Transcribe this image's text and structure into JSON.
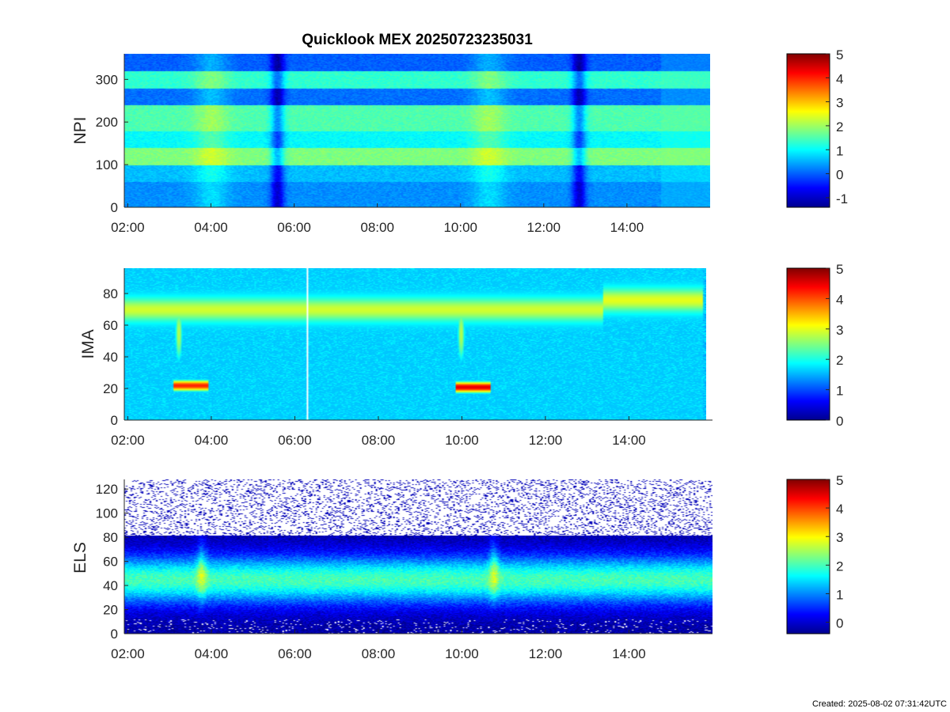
{
  "chart_data": [
    {
      "type": "heatmap",
      "title": "Quicklook MEX 20250723235031",
      "ylabel": "NPI",
      "ylim": [
        0,
        360
      ],
      "yticks": [
        "0",
        "100",
        "200",
        "300"
      ],
      "xlim": [
        "01:55",
        "16:00"
      ],
      "xticks": [
        "02:00",
        "04:00",
        "06:00",
        "08:00",
        "10:00",
        "12:00",
        "14:00"
      ],
      "colorbar": {
        "min": -1.4,
        "max": 5,
        "ticks": [
          "-1",
          "0",
          "1",
          "2",
          "3",
          "4",
          "5"
        ]
      },
      "features": [
        {
          "kind": "dip",
          "time": "05:35",
          "value": 0.2
        },
        {
          "kind": "dip",
          "time": "12:50",
          "value": 0.2
        },
        {
          "kind": "enhancement",
          "time": "04:00",
          "value": 2.0
        },
        {
          "kind": "enhancement",
          "time": "10:40",
          "value": 1.8
        }
      ]
    },
    {
      "type": "heatmap",
      "title": "",
      "ylabel": "IMA",
      "ylim": [
        0,
        96
      ],
      "yticks": [
        "0",
        "20",
        "40",
        "60",
        "80"
      ],
      "xlim": [
        "01:55",
        "16:00"
      ],
      "xticks": [
        "02:00",
        "04:00",
        "06:00",
        "08:00",
        "10:00",
        "12:00",
        "14:00"
      ],
      "colorbar": {
        "min": 0,
        "max": 5,
        "ticks": [
          "0",
          "1",
          "2",
          "3",
          "4",
          "5"
        ]
      },
      "data_gap": {
        "start": "06:18",
        "end": "06:22"
      },
      "features": [
        {
          "kind": "band",
          "start": "01:55",
          "end": "13:30",
          "center": 70,
          "value": 2.9
        },
        {
          "kind": "band",
          "start": "13:30",
          "end": "15:55",
          "center": 76,
          "value": 3.0
        },
        {
          "kind": "peak",
          "time": "03:30",
          "energy": 22,
          "value": 4.2
        },
        {
          "kind": "peak",
          "time": "10:20",
          "energy": 21,
          "value": 4.5
        }
      ]
    },
    {
      "type": "heatmap",
      "title": "",
      "ylabel": "ELS",
      "ylim": [
        0,
        128
      ],
      "yticks": [
        "0",
        "20",
        "40",
        "60",
        "80",
        "100",
        "120"
      ],
      "xlim": [
        "01:55",
        "16:00"
      ],
      "xticks": [
        "02:00",
        "04:00",
        "06:00",
        "08:00",
        "10:00",
        "12:00",
        "14:00"
      ],
      "colorbar": {
        "min": -0.4,
        "max": 5,
        "ticks": [
          "0",
          "1",
          "2",
          "3",
          "4",
          "5"
        ]
      },
      "features": [
        {
          "kind": "band",
          "center": 45,
          "value": 2.2
        },
        {
          "kind": "enhancement",
          "time": "03:45",
          "value": 2.7
        },
        {
          "kind": "enhancement",
          "time": "10:45",
          "value": 2.6
        }
      ]
    }
  ],
  "footer": {
    "created": "Created: 2025-08-02 07:31:42UTC"
  }
}
